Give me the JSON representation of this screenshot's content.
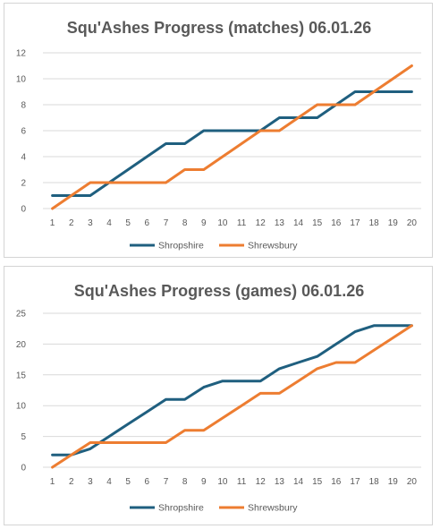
{
  "colors": {
    "Shropshire": "#1f5f7f",
    "Shrewsbury": "#ed7d31",
    "grid": "#d9d9d9",
    "text": "#595959"
  },
  "chart_data": [
    {
      "type": "line",
      "title": "Squ'Ashes Progress (matches) 06.01.26",
      "xlabel": "",
      "ylabel": "",
      "x": [
        1,
        2,
        3,
        4,
        5,
        6,
        7,
        8,
        9,
        10,
        11,
        12,
        13,
        14,
        15,
        16,
        17,
        18,
        19,
        20
      ],
      "ylim": [
        0,
        12
      ],
      "yticks": [
        0,
        2,
        4,
        6,
        8,
        10,
        12
      ],
      "grid": true,
      "legend": "bottom",
      "series": [
        {
          "name": "Shropshire",
          "values": [
            1,
            1,
            1,
            2,
            3,
            4,
            5,
            5,
            6,
            6,
            6,
            6,
            7,
            7,
            7,
            8,
            9,
            9,
            9,
            9
          ]
        },
        {
          "name": "Shrewsbury",
          "values": [
            0,
            1,
            2,
            2,
            2,
            2,
            2,
            3,
            3,
            4,
            5,
            6,
            6,
            7,
            8,
            8,
            8,
            9,
            10,
            11
          ]
        }
      ]
    },
    {
      "type": "line",
      "title": "Squ'Ashes Progress (games) 06.01.26",
      "xlabel": "",
      "ylabel": "",
      "x": [
        1,
        2,
        3,
        4,
        5,
        6,
        7,
        8,
        9,
        10,
        11,
        12,
        13,
        14,
        15,
        16,
        17,
        18,
        19,
        20
      ],
      "ylim": [
        0,
        25
      ],
      "yticks": [
        0,
        5,
        10,
        15,
        20,
        25
      ],
      "grid": true,
      "legend": "bottom",
      "series": [
        {
          "name": "Shropshire",
          "values": [
            2,
            2,
            3,
            5,
            7,
            9,
            11,
            11,
            13,
            14,
            14,
            14,
            16,
            17,
            18,
            20,
            22,
            23,
            23,
            23
          ]
        },
        {
          "name": "Shrewsbury",
          "values": [
            0,
            2,
            4,
            4,
            4,
            4,
            4,
            6,
            6,
            8,
            10,
            12,
            12,
            14,
            16,
            17,
            17,
            19,
            21,
            23
          ]
        }
      ]
    }
  ]
}
